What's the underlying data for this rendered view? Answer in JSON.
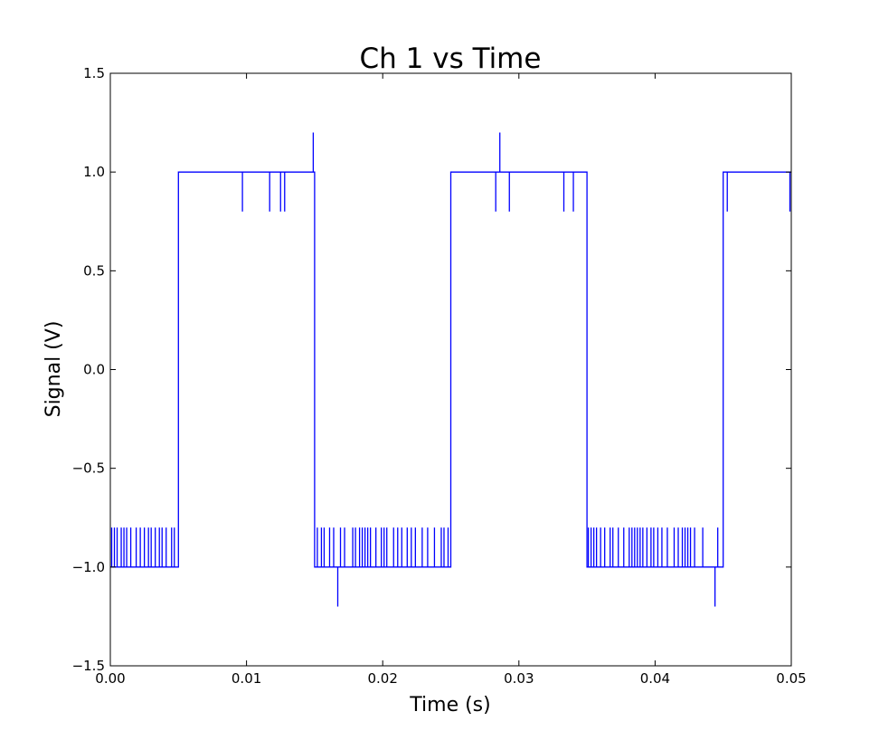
{
  "chart_data": {
    "type": "line",
    "title": "Ch 1 vs Time",
    "xlabel": "Time (s)",
    "ylabel": "Signal (V)",
    "xlim": [
      0.0,
      0.05
    ],
    "ylim": [
      -1.5,
      1.5
    ],
    "x_ticks": [
      0.0,
      0.01,
      0.02,
      0.03,
      0.04,
      0.05
    ],
    "x_tick_labels": [
      "0.00",
      "0.01",
      "0.02",
      "0.03",
      "0.04",
      "0.05"
    ],
    "y_ticks": [
      -1.5,
      -1.0,
      -0.5,
      0.0,
      0.5,
      1.0,
      1.5
    ],
    "y_tick_labels": [
      "−1.5",
      "−1.0",
      "−0.5",
      "0.0",
      "0.5",
      "1.0",
      "1.5"
    ],
    "grid": false,
    "legend": "none",
    "series": [
      {
        "color": "#0000ff",
        "base_steps": [
          [
            0.0,
            -1.0
          ],
          [
            0.005,
            1.0
          ],
          [
            0.015,
            -1.0
          ],
          [
            0.025,
            1.0
          ],
          [
            0.035,
            -1.0
          ],
          [
            0.045,
            1.0
          ],
          [
            0.05,
            1.0
          ]
        ],
        "glitches": [
          [
            0.0001,
            -0.8
          ],
          [
            0.0003,
            -0.8
          ],
          [
            0.0005,
            -0.8
          ],
          [
            0.0008,
            -0.8
          ],
          [
            0.001,
            -0.8
          ],
          [
            0.0012,
            -0.8
          ],
          [
            0.0015,
            -0.8
          ],
          [
            0.0019,
            -0.8
          ],
          [
            0.0022,
            -0.8
          ],
          [
            0.0025,
            -0.8
          ],
          [
            0.0028,
            -0.8
          ],
          [
            0.003,
            -0.8
          ],
          [
            0.0033,
            -0.8
          ],
          [
            0.0036,
            -0.8
          ],
          [
            0.0038,
            -0.8
          ],
          [
            0.0041,
            -0.8
          ],
          [
            0.0045,
            -0.8
          ],
          [
            0.0047,
            -0.8
          ],
          [
            0.0097,
            0.8
          ],
          [
            0.0117,
            0.8
          ],
          [
            0.0125,
            0.8
          ],
          [
            0.0128,
            0.8
          ],
          [
            0.0149,
            1.2
          ],
          [
            0.0152,
            -0.8
          ],
          [
            0.0155,
            -0.8
          ],
          [
            0.0157,
            -0.8
          ],
          [
            0.0161,
            -0.8
          ],
          [
            0.0164,
            -0.8
          ],
          [
            0.0167,
            -1.2
          ],
          [
            0.0169,
            -0.8
          ],
          [
            0.0172,
            -0.8
          ],
          [
            0.0178,
            -0.8
          ],
          [
            0.018,
            -0.8
          ],
          [
            0.0183,
            -0.8
          ],
          [
            0.0185,
            -0.8
          ],
          [
            0.0187,
            -0.8
          ],
          [
            0.0189,
            -0.8
          ],
          [
            0.0191,
            -0.8
          ],
          [
            0.0195,
            -0.8
          ],
          [
            0.0199,
            -0.8
          ],
          [
            0.0201,
            -0.8
          ],
          [
            0.0203,
            -0.8
          ],
          [
            0.0208,
            -0.8
          ],
          [
            0.0211,
            -0.8
          ],
          [
            0.0214,
            -0.8
          ],
          [
            0.0218,
            -0.8
          ],
          [
            0.0221,
            -0.8
          ],
          [
            0.0224,
            -0.8
          ],
          [
            0.0229,
            -0.8
          ],
          [
            0.0233,
            -0.8
          ],
          [
            0.0238,
            -0.8
          ],
          [
            0.0243,
            -0.8
          ],
          [
            0.0245,
            -0.8
          ],
          [
            0.0248,
            -0.8
          ],
          [
            0.0283,
            0.8
          ],
          [
            0.0286,
            1.2
          ],
          [
            0.0293,
            0.8
          ],
          [
            0.0333,
            0.8
          ],
          [
            0.034,
            0.8
          ],
          [
            0.0351,
            -0.8
          ],
          [
            0.0353,
            -0.8
          ],
          [
            0.0355,
            -0.8
          ],
          [
            0.0357,
            -0.8
          ],
          [
            0.036,
            -0.8
          ],
          [
            0.0363,
            -0.8
          ],
          [
            0.0367,
            -0.8
          ],
          [
            0.0369,
            -0.8
          ],
          [
            0.0373,
            -0.8
          ],
          [
            0.0377,
            -0.8
          ],
          [
            0.0381,
            -0.8
          ],
          [
            0.0383,
            -0.8
          ],
          [
            0.0385,
            -0.8
          ],
          [
            0.0387,
            -0.8
          ],
          [
            0.0389,
            -0.8
          ],
          [
            0.0391,
            -0.8
          ],
          [
            0.0394,
            -0.8
          ],
          [
            0.0397,
            -0.8
          ],
          [
            0.0399,
            -0.8
          ],
          [
            0.0402,
            -0.8
          ],
          [
            0.0405,
            -0.8
          ],
          [
            0.0409,
            -0.8
          ],
          [
            0.0414,
            -0.8
          ],
          [
            0.0417,
            -0.8
          ],
          [
            0.042,
            -0.8
          ],
          [
            0.0422,
            -0.8
          ],
          [
            0.0424,
            -0.8
          ],
          [
            0.0426,
            -0.8
          ],
          [
            0.0429,
            -0.8
          ],
          [
            0.0435,
            -0.8
          ],
          [
            0.0444,
            -1.2
          ],
          [
            0.0446,
            -0.8
          ],
          [
            0.0453,
            0.8
          ],
          [
            0.0499,
            0.8
          ]
        ]
      }
    ]
  }
}
